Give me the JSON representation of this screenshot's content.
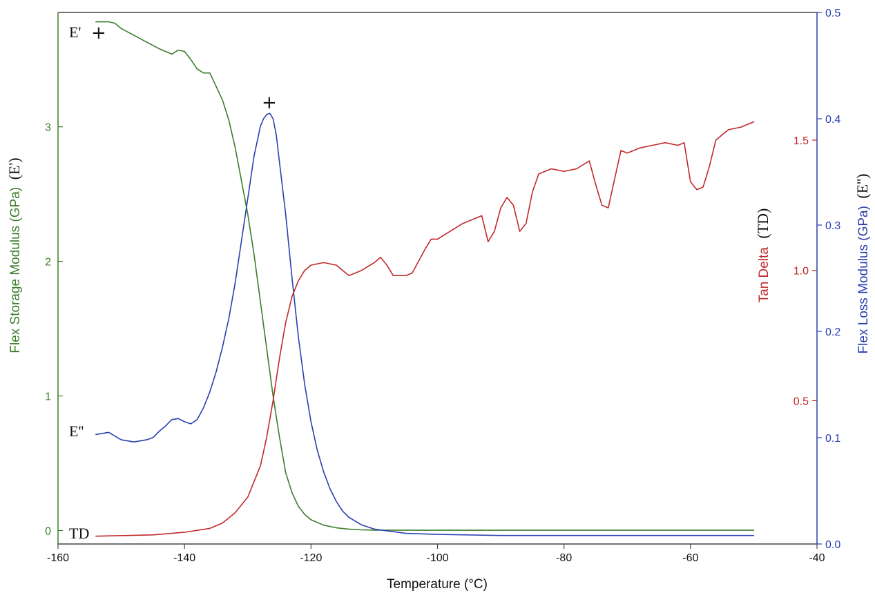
{
  "chart_data": {
    "type": "line",
    "xlabel": "Temperature (°C)",
    "xlim": [
      -160,
      -40
    ],
    "x_ticks": [
      "-160",
      "-140",
      "-120",
      "-100",
      "-80",
      "-60",
      "-40"
    ],
    "y_left": {
      "label": "Flex Storage Modulus (GPa)",
      "label_suffix": "(E')",
      "color": "#3a7d2a",
      "lim": [
        -0.1,
        3.85
      ],
      "ticks": [
        "0",
        "1",
        "2",
        "3"
      ]
    },
    "y_tan": {
      "label": "Tan Delta",
      "label_suffix": "(TD)",
      "color": "#c0282a",
      "lim": [
        -0.05,
        1.99
      ],
      "ticks": [
        "0.5",
        "1.0",
        "1.5"
      ]
    },
    "y_right": {
      "label": "Flex Loss Modulus (GPa)",
      "label_suffix": "(E'')",
      "color": "#2a3fb0",
      "lim": [
        0.0,
        0.5
      ],
      "ticks": [
        "0.0",
        "0.1",
        "0.2",
        "0.3",
        "0.4",
        "0.5"
      ]
    },
    "series": [
      {
        "key": "E_storage",
        "axis": "left",
        "color": "#3a7d2a",
        "x": [
          -154,
          -152,
          -151,
          -150,
          -148,
          -146,
          -144,
          -142,
          -141,
          -140,
          -139,
          -138,
          -137,
          -136,
          -135,
          -134,
          -133,
          -132,
          -131,
          -130,
          -129,
          -128,
          -127,
          -126,
          -125,
          -124,
          -123,
          -122,
          -121,
          -120,
          -118,
          -116,
          -114,
          -112,
          -110,
          -100,
          -90,
          -80,
          -70,
          -60,
          -50
        ],
        "y": [
          3.78,
          3.78,
          3.77,
          3.73,
          3.68,
          3.63,
          3.58,
          3.54,
          3.57,
          3.56,
          3.5,
          3.43,
          3.4,
          3.4,
          3.3,
          3.2,
          3.05,
          2.85,
          2.6,
          2.35,
          2.05,
          1.7,
          1.35,
          1.0,
          0.7,
          0.43,
          0.28,
          0.18,
          0.12,
          0.08,
          0.04,
          0.02,
          0.01,
          0.005,
          0.003,
          0.002,
          0.002,
          0.002,
          0.002,
          0.002,
          0.002
        ]
      },
      {
        "key": "E_loss",
        "axis": "right",
        "color": "#2a3fb0",
        "x": [
          -154,
          -152,
          -150,
          -148,
          -146,
          -145,
          -144,
          -143,
          -142,
          -141,
          -140,
          -139,
          -138,
          -137,
          -136,
          -135,
          -134,
          -133,
          -132,
          -131,
          -130,
          -129,
          -128,
          -127.5,
          -127,
          -126.5,
          -126,
          -125.5,
          -125,
          -124,
          -123,
          -122,
          -121,
          -120,
          -119,
          -118,
          -117,
          -116,
          -115,
          -114,
          -112,
          -110,
          -105,
          -100,
          -90,
          -80,
          -70,
          -60,
          -50
        ],
        "y": [
          0.103,
          0.105,
          0.098,
          0.096,
          0.098,
          0.1,
          0.106,
          0.111,
          0.117,
          0.118,
          0.115,
          0.113,
          0.117,
          0.128,
          0.143,
          0.162,
          0.185,
          0.212,
          0.245,
          0.285,
          0.325,
          0.365,
          0.393,
          0.4,
          0.404,
          0.405,
          0.4,
          0.385,
          0.36,
          0.31,
          0.25,
          0.195,
          0.15,
          0.115,
          0.088,
          0.068,
          0.052,
          0.04,
          0.031,
          0.025,
          0.018,
          0.014,
          0.01,
          0.009,
          0.008,
          0.008,
          0.008,
          0.008,
          0.008
        ]
      },
      {
        "key": "tan_delta",
        "axis": "tan",
        "color": "#c0282a",
        "x": [
          -154,
          -145,
          -140,
          -136,
          -134,
          -132,
          -130,
          -128,
          -127,
          -126,
          -125,
          -124,
          -123,
          -122,
          -121,
          -120,
          -118,
          -116,
          -114,
          -112,
          -110,
          -109,
          -108,
          -107,
          -105,
          -104,
          -102,
          -101,
          -100,
          -98,
          -96,
          -94,
          -93,
          -92,
          -91,
          -90,
          -89,
          -88,
          -87,
          -86,
          -85,
          -84,
          -82,
          -80,
          -78,
          -76,
          -75,
          -74,
          -73,
          -72,
          -71,
          -70,
          -68,
          -66,
          -64,
          -62,
          -61,
          -60,
          -59,
          -58,
          -57,
          -56,
          -55,
          -54,
          -52,
          -50
        ],
        "y": [
          -0.02,
          -0.015,
          -0.005,
          0.01,
          0.03,
          0.07,
          0.13,
          0.25,
          0.36,
          0.5,
          0.66,
          0.8,
          0.9,
          0.96,
          1.0,
          1.02,
          1.03,
          1.02,
          0.98,
          1.0,
          1.03,
          1.05,
          1.02,
          0.98,
          0.98,
          0.99,
          1.08,
          1.12,
          1.12,
          1.15,
          1.18,
          1.2,
          1.21,
          1.11,
          1.15,
          1.24,
          1.28,
          1.25,
          1.15,
          1.18,
          1.3,
          1.37,
          1.39,
          1.38,
          1.39,
          1.42,
          1.33,
          1.25,
          1.24,
          1.35,
          1.46,
          1.45,
          1.47,
          1.48,
          1.49,
          1.48,
          1.49,
          1.34,
          1.31,
          1.32,
          1.4,
          1.5,
          1.52,
          1.54,
          1.55,
          1.57
        ]
      }
    ],
    "annotations": {
      "e_storage_label": "E'",
      "e_loss_label": "E''",
      "td_label": "TD",
      "marker_symbol": "+"
    }
  }
}
